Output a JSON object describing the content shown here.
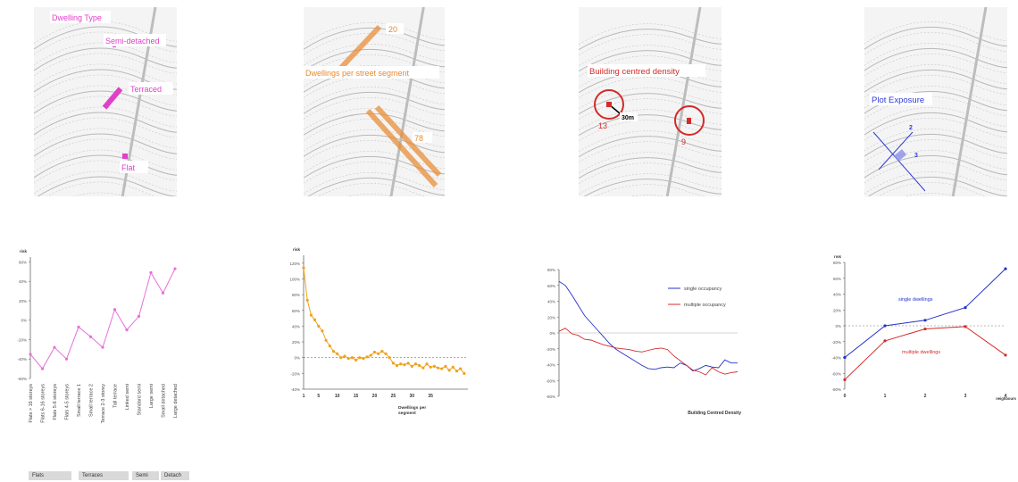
{
  "maps": [
    {
      "labels": {
        "title": "Dwelling Type",
        "semi": "Semi-detached",
        "terraced": "Terraced",
        "flat": "Flat"
      },
      "color": "#e040c8"
    },
    {
      "labels": {
        "title": "Dwellings per street segment",
        "v1": "20",
        "v2": "78"
      },
      "color": "#e8892e"
    },
    {
      "labels": {
        "title": "Building centred density",
        "v1": "13",
        "v2": "9",
        "radius": "30m"
      },
      "color": "#d42a2a"
    },
    {
      "labels": {
        "title": "Plot Exposure",
        "v1": "2",
        "v2": "3"
      },
      "color": "#2c3ad8"
    }
  ],
  "category_groups": [
    "Flats",
    "Terraces",
    "Semi",
    "Detach"
  ],
  "chart_data": [
    {
      "type": "line",
      "ylabel": "risk",
      "yticks": [
        "-60%",
        "-40%",
        "-20%",
        "0%",
        "20%",
        "40%",
        "60%"
      ],
      "ylim": [
        -60,
        65
      ],
      "categories": [
        "Flats > 16 storeys",
        "Flats 6-16 storeys",
        "Flats 5-6 storeys",
        "Flats 4-5 storeys",
        "Small terrace 1",
        "Small terrace 2",
        "Terrace 2-3 storey",
        "Tall terrace",
        "Linked semi",
        "Standard semi",
        "Large semi",
        "Small detached",
        "Large detached"
      ],
      "series": [
        {
          "values": [
            -35,
            -50,
            -28,
            -40,
            -7,
            -17,
            -28,
            11,
            -10,
            4,
            49,
            28,
            53
          ],
          "color": "#e86fd8"
        }
      ]
    },
    {
      "type": "line",
      "ylabel": "risk",
      "xlabel": "Dwellings per segment",
      "yticks": [
        "-40%",
        "-20%",
        "0%",
        "20%",
        "40%",
        "60%",
        "80%",
        "100%",
        "120%"
      ],
      "xticks": [
        "1",
        "5",
        "10",
        "15",
        "20",
        "25",
        "30",
        "35"
      ],
      "ylim": [
        -40,
        130
      ],
      "xlim": [
        1,
        45
      ],
      "series": [
        {
          "color": "#f0a21c",
          "x": [
            1,
            2,
            3,
            4,
            5,
            6,
            7,
            8,
            9,
            10,
            11,
            12,
            13,
            14,
            15,
            16,
            17,
            18,
            19,
            20,
            21,
            22,
            23,
            24,
            25,
            26,
            27,
            28,
            29,
            30,
            31,
            32,
            33,
            34,
            35,
            36,
            37,
            38,
            39,
            40,
            41,
            42,
            43,
            44
          ],
          "values": [
            114,
            73,
            54,
            48,
            40,
            34,
            22,
            15,
            8,
            5,
            0,
            2,
            -1,
            0,
            -3,
            0,
            -1,
            1,
            3,
            7,
            5,
            8,
            5,
            0,
            -7,
            -10,
            -8,
            -9,
            -7,
            -11,
            -8,
            -10,
            -13,
            -8,
            -12,
            -11,
            -13,
            -14,
            -11,
            -16,
            -12,
            -17,
            -14,
            -20
          ]
        }
      ]
    },
    {
      "type": "line",
      "xlabel": "Building Centred Density",
      "yticks": [
        "-80%",
        "-60%",
        "-40%",
        "-20%",
        "0%",
        "20%",
        "40%",
        "60%",
        "80%"
      ],
      "ylim": [
        -80,
        80
      ],
      "legend": "top-right",
      "series": [
        {
          "name": "single occupancy",
          "color": "#2530c8",
          "values": [
            65,
            60,
            48,
            35,
            22,
            13,
            4,
            -5,
            -14,
            -21,
            -26,
            -31,
            -36,
            -41,
            -45,
            -46,
            -44,
            -43,
            -44,
            -38,
            -41,
            -48,
            -45,
            -41,
            -43,
            -44,
            -34,
            -38,
            -38
          ]
        },
        {
          "name": "multiple occupancy",
          "color": "#d42a2a",
          "values": [
            2,
            6,
            -1,
            -3,
            -8,
            -9,
            -12,
            -15,
            -17,
            -19,
            -20,
            -21,
            -23,
            -24,
            -22,
            -20,
            -19,
            -21,
            -29,
            -35,
            -41,
            -47,
            -49,
            -53,
            -44,
            -49,
            -52,
            -50,
            -49
          ]
        }
      ]
    },
    {
      "type": "line",
      "ylabel": "risk",
      "xlabel": "neighbours",
      "yticks": [
        "-80%",
        "-60%",
        "-40%",
        "-20%",
        "0%",
        "20%",
        "40%",
        "60%",
        "80%"
      ],
      "xticks": [
        "0",
        "1",
        "2",
        "3",
        "4"
      ],
      "ylim": [
        -80,
        80
      ],
      "xlim": [
        0,
        4
      ],
      "series": [
        {
          "name": "single dwellings",
          "color": "#2530c8",
          "x": [
            0,
            1,
            2,
            3,
            4
          ],
          "values": [
            -40,
            0,
            7,
            23,
            72
          ]
        },
        {
          "name": "multiple dwellings",
          "color": "#d42a2a",
          "x": [
            0,
            1,
            2,
            3,
            4
          ],
          "values": [
            -68,
            -19,
            -4,
            -1,
            -37
          ]
        }
      ]
    }
  ]
}
